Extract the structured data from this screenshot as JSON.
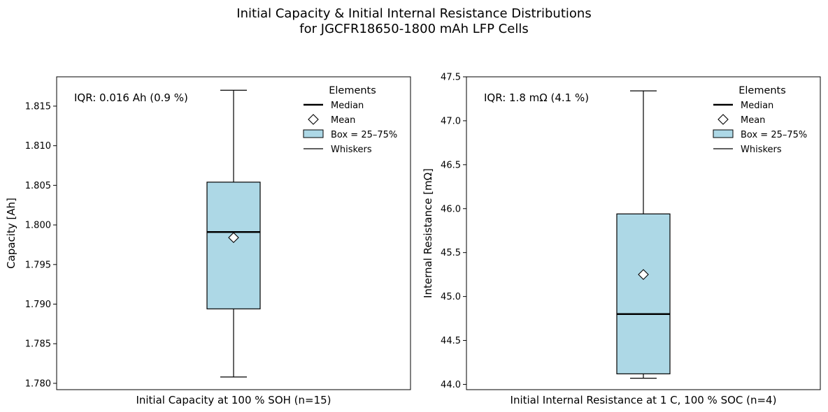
{
  "figure": {
    "title_line1": "Initial Capacity & Initial Internal Resistance Distributions",
    "title_line2": "for JGCFR18650-1800 mAh LFP Cells"
  },
  "colors": {
    "box_fill": "#add8e6",
    "edge": "#000000",
    "mean_fill": "#ffffff"
  },
  "chart_data": [
    {
      "type": "box",
      "xlabel": "Initial Capacity at 100 % SOH (n=15)",
      "ylabel": "Capacity [Ah]",
      "ylim": [
        1.7792,
        1.8187
      ],
      "yticks": [
        1.78,
        1.785,
        1.79,
        1.795,
        1.8,
        1.805,
        1.81,
        1.815
      ],
      "ytick_labels": [
        "1.780",
        "1.785",
        "1.790",
        "1.795",
        "1.800",
        "1.805",
        "1.810",
        "1.815"
      ],
      "whisker_low": 1.7808,
      "q1": 1.7894,
      "median": 1.7991,
      "mean": 1.7984,
      "q3": 1.8054,
      "whisker_high": 1.817,
      "iqr_annotation": "IQR: 0.016 Ah (0.9 %)",
      "legend": {
        "title": "Elements",
        "median": "Median",
        "mean": "Mean",
        "box": "Box = 25–75%",
        "whiskers": "Whiskers"
      }
    },
    {
      "type": "box",
      "xlabel": "Initial Internal Resistance at 1 C, 100 % SOC (n=4)",
      "ylabel": "Internal Resistance [mΩ]",
      "ylim": [
        43.94,
        47.5
      ],
      "yticks": [
        44.0,
        44.5,
        45.0,
        45.5,
        46.0,
        46.5,
        47.0,
        47.5
      ],
      "ytick_labels": [
        "44.0",
        "44.5",
        "45.0",
        "45.5",
        "46.0",
        "46.5",
        "47.0",
        "47.5"
      ],
      "whisker_low": 44.07,
      "q1": 44.12,
      "median": 44.8,
      "mean": 45.25,
      "q3": 45.94,
      "whisker_high": 47.34,
      "iqr_annotation": "IQR: 1.8 mΩ (4.1 %)",
      "legend": {
        "title": "Elements",
        "median": "Median",
        "mean": "Mean",
        "box": "Box = 25–75%",
        "whiskers": "Whiskers"
      }
    }
  ]
}
